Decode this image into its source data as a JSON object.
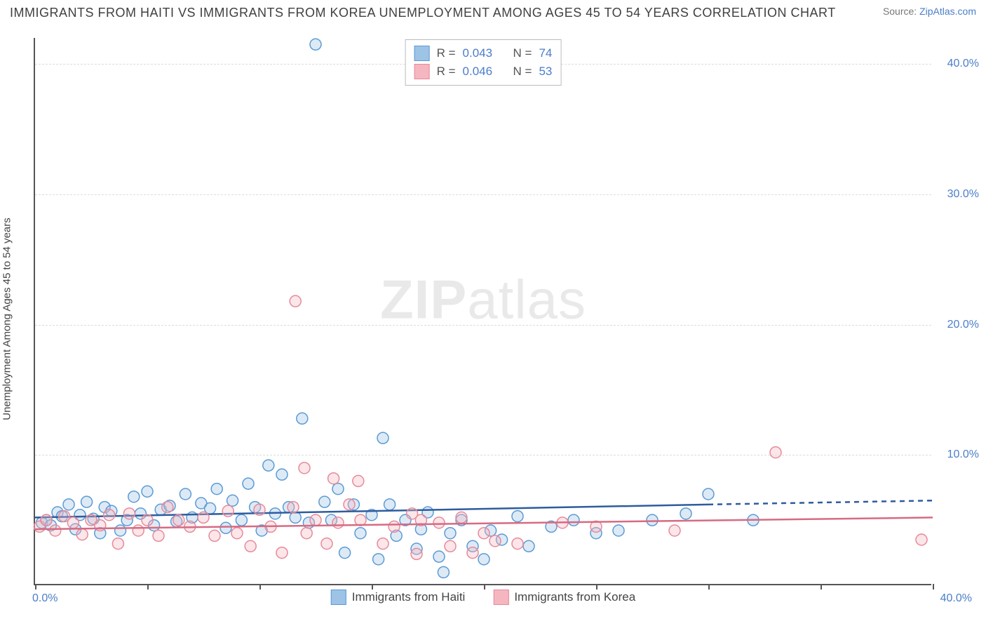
{
  "title": "IMMIGRANTS FROM HAITI VS IMMIGRANTS FROM KOREA UNEMPLOYMENT AMONG AGES 45 TO 54 YEARS CORRELATION CHART",
  "source_label": "Source:",
  "source_link": "ZipAtlas.com",
  "ylabel": "Unemployment Among Ages 45 to 54 years",
  "watermark_bold": "ZIP",
  "watermark_rest": "atlas",
  "chart": {
    "type": "scatter-with-trend",
    "xlim": [
      0,
      40
    ],
    "ylim": [
      0,
      42
    ],
    "y_ticks": [
      10,
      20,
      30,
      40
    ],
    "y_tick_labels": [
      "10.0%",
      "20.0%",
      "30.0%",
      "40.0%"
    ],
    "x_tick_labels": [
      "0.0%",
      "40.0%"
    ],
    "grid_color": "#dcdcdc",
    "axis_color": "#555555",
    "tick_label_color": "#4a7ec9",
    "background": "#ffffff",
    "marker_radius": 8,
    "marker_stroke_width": 1.5,
    "marker_fill_opacity": 0.35,
    "trend_line_width": 2.5,
    "series": [
      {
        "name": "Immigrants from Haiti",
        "color_fill": "#9dc3e6",
        "color_stroke": "#5b9bd5",
        "trend_color": "#2e5c9e",
        "R": "0.043",
        "N": "74",
        "trend": {
          "x1": 0,
          "y1": 5.2,
          "x2": 30,
          "y2": 6.2,
          "ext_x2": 40,
          "ext_y2": 6.5
        },
        "points": [
          [
            0.3,
            4.8
          ],
          [
            0.5,
            5.0
          ],
          [
            0.7,
            4.6
          ],
          [
            1.0,
            5.6
          ],
          [
            1.2,
            5.3
          ],
          [
            1.5,
            6.2
          ],
          [
            1.8,
            4.3
          ],
          [
            2.0,
            5.4
          ],
          [
            2.3,
            6.4
          ],
          [
            2.6,
            5.1
          ],
          [
            2.9,
            4.0
          ],
          [
            3.1,
            6.0
          ],
          [
            3.4,
            5.7
          ],
          [
            3.8,
            4.2
          ],
          [
            4.1,
            5.0
          ],
          [
            4.4,
            6.8
          ],
          [
            4.7,
            5.5
          ],
          [
            5.0,
            7.2
          ],
          [
            5.3,
            4.6
          ],
          [
            5.6,
            5.8
          ],
          [
            6.0,
            6.1
          ],
          [
            6.3,
            4.9
          ],
          [
            6.7,
            7.0
          ],
          [
            7.0,
            5.2
          ],
          [
            7.4,
            6.3
          ],
          [
            7.8,
            5.9
          ],
          [
            8.1,
            7.4
          ],
          [
            8.5,
            4.4
          ],
          [
            8.8,
            6.5
          ],
          [
            9.2,
            5.0
          ],
          [
            9.5,
            7.8
          ],
          [
            9.8,
            6.0
          ],
          [
            10.1,
            4.2
          ],
          [
            10.4,
            9.2
          ],
          [
            10.7,
            5.5
          ],
          [
            11.0,
            8.5
          ],
          [
            11.3,
            6.0
          ],
          [
            11.6,
            5.2
          ],
          [
            11.9,
            12.8
          ],
          [
            12.2,
            4.8
          ],
          [
            12.5,
            41.5
          ],
          [
            12.9,
            6.4
          ],
          [
            13.2,
            5.0
          ],
          [
            13.5,
            7.4
          ],
          [
            13.8,
            2.5
          ],
          [
            14.2,
            6.2
          ],
          [
            14.5,
            4.0
          ],
          [
            15.0,
            5.4
          ],
          [
            15.3,
            2.0
          ],
          [
            15.5,
            11.3
          ],
          [
            15.8,
            6.2
          ],
          [
            16.1,
            3.8
          ],
          [
            16.5,
            5.0
          ],
          [
            17.0,
            2.8
          ],
          [
            17.2,
            4.3
          ],
          [
            17.5,
            5.6
          ],
          [
            18.0,
            2.2
          ],
          [
            18.5,
            4.0
          ],
          [
            19.0,
            5.0
          ],
          [
            19.5,
            3.0
          ],
          [
            20.0,
            2.0
          ],
          [
            20.3,
            4.2
          ],
          [
            20.8,
            3.5
          ],
          [
            21.5,
            5.3
          ],
          [
            22.0,
            3.0
          ],
          [
            23.0,
            4.5
          ],
          [
            24.0,
            5.0
          ],
          [
            25.0,
            4.0
          ],
          [
            26.0,
            4.2
          ],
          [
            27.5,
            5.0
          ],
          [
            29.0,
            5.5
          ],
          [
            30.0,
            7.0
          ],
          [
            32.0,
            5.0
          ],
          [
            18.2,
            1.0
          ]
        ]
      },
      {
        "name": "Immigrants from Korea",
        "color_fill": "#f5b6c0",
        "color_stroke": "#e68a9a",
        "trend_color": "#d66b82",
        "R": "0.046",
        "N": "53",
        "trend": {
          "x1": 0,
          "y1": 4.3,
          "x2": 40,
          "y2": 5.2
        },
        "points": [
          [
            0.2,
            4.5
          ],
          [
            0.5,
            5.0
          ],
          [
            0.9,
            4.2
          ],
          [
            1.3,
            5.3
          ],
          [
            1.7,
            4.8
          ],
          [
            2.1,
            3.9
          ],
          [
            2.5,
            5.0
          ],
          [
            2.9,
            4.6
          ],
          [
            3.3,
            5.4
          ],
          [
            3.7,
            3.2
          ],
          [
            4.2,
            5.5
          ],
          [
            4.6,
            4.2
          ],
          [
            5.0,
            5.0
          ],
          [
            5.5,
            3.8
          ],
          [
            5.9,
            6.0
          ],
          [
            6.4,
            5.0
          ],
          [
            6.9,
            4.5
          ],
          [
            7.5,
            5.2
          ],
          [
            8.0,
            3.8
          ],
          [
            8.6,
            5.7
          ],
          [
            9.0,
            4.0
          ],
          [
            9.6,
            3.0
          ],
          [
            10.0,
            5.8
          ],
          [
            10.5,
            4.5
          ],
          [
            11.0,
            2.5
          ],
          [
            11.5,
            6.0
          ],
          [
            11.6,
            21.8
          ],
          [
            12.0,
            9.0
          ],
          [
            12.1,
            4.0
          ],
          [
            12.5,
            5.0
          ],
          [
            13.0,
            3.2
          ],
          [
            13.3,
            8.2
          ],
          [
            13.5,
            4.8
          ],
          [
            14.0,
            6.2
          ],
          [
            14.4,
            8.0
          ],
          [
            14.5,
            5.0
          ],
          [
            15.5,
            3.2
          ],
          [
            16.0,
            4.5
          ],
          [
            16.8,
            5.5
          ],
          [
            17.0,
            2.4
          ],
          [
            17.2,
            5.0
          ],
          [
            18.0,
            4.8
          ],
          [
            18.5,
            3.0
          ],
          [
            19.0,
            5.2
          ],
          [
            19.5,
            2.5
          ],
          [
            20.0,
            4.0
          ],
          [
            20.5,
            3.4
          ],
          [
            21.5,
            3.2
          ],
          [
            23.5,
            4.8
          ],
          [
            25.0,
            4.5
          ],
          [
            28.5,
            4.2
          ],
          [
            33.0,
            10.2
          ],
          [
            39.5,
            3.5
          ]
        ]
      }
    ]
  },
  "legend_top_labels": {
    "R": "R =",
    "N": "N ="
  }
}
